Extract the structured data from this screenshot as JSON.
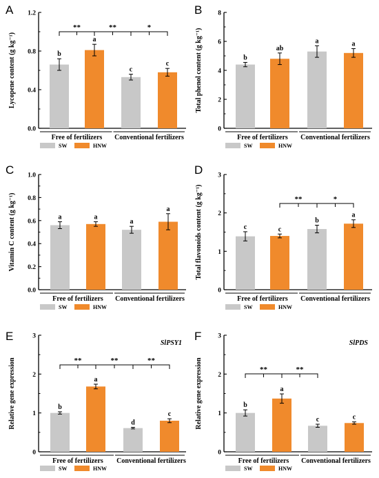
{
  "figure": {
    "colors": {
      "SW": "#c8c8c8",
      "HNW": "#f08a2c",
      "axis": "#000000"
    },
    "legend": [
      "SW",
      "HNW"
    ],
    "groups": [
      "Free of fertilizers",
      "Conventional fertilizers"
    ]
  },
  "chart_data": [
    {
      "panel": "A",
      "type": "bar",
      "ylabel": "Lycopene content (g kg⁻¹)",
      "ylim": [
        0,
        1.2
      ],
      "yticks": [
        "0.0",
        "0.4",
        "0.8",
        "1.2"
      ],
      "values": [
        0.66,
        0.81,
        0.53,
        0.58
      ],
      "errors": [
        0.06,
        0.06,
        0.03,
        0.04
      ],
      "letters": [
        "b",
        "a",
        "c",
        "c"
      ],
      "sig": [
        {
          "from": 0,
          "to": 1,
          "label": "**"
        },
        {
          "from": 1,
          "to": 2,
          "label": "**"
        },
        {
          "from": 2,
          "to": 3,
          "label": "*"
        }
      ],
      "gene": ""
    },
    {
      "panel": "B",
      "type": "bar",
      "ylabel": "Total phenol content (g kg⁻¹)",
      "ylim": [
        0,
        8
      ],
      "yticks": [
        "0",
        "2",
        "4",
        "6",
        "8"
      ],
      "values": [
        4.4,
        4.8,
        5.3,
        5.2
      ],
      "errors": [
        0.15,
        0.4,
        0.4,
        0.3
      ],
      "letters": [
        "b",
        "ab",
        "a",
        "a"
      ],
      "sig": [],
      "gene": ""
    },
    {
      "panel": "C",
      "type": "bar",
      "ylabel": "Vitamin C content (g kg⁻¹)",
      "ylim": [
        0,
        1.0
      ],
      "yticks": [
        "0.0",
        "0.2",
        "0.4",
        "0.6",
        "0.8",
        "1.0"
      ],
      "values": [
        0.56,
        0.57,
        0.52,
        0.59
      ],
      "errors": [
        0.03,
        0.02,
        0.03,
        0.07
      ],
      "letters": [
        "a",
        "a",
        "a",
        "a"
      ],
      "sig": [],
      "gene": ""
    },
    {
      "panel": "D",
      "type": "bar",
      "ylabel": "Total flavonoids content (g kg⁻¹)",
      "ylim": [
        0,
        3
      ],
      "yticks": [
        "0",
        "1",
        "2",
        "3"
      ],
      "values": [
        1.39,
        1.4,
        1.58,
        1.72
      ],
      "errors": [
        0.12,
        0.05,
        0.1,
        0.1
      ],
      "letters": [
        "c",
        "c",
        "b",
        "a"
      ],
      "sig": [
        {
          "from": 1,
          "to": 2,
          "label": "**"
        },
        {
          "from": 2,
          "to": 3,
          "label": "*"
        }
      ],
      "gene": ""
    },
    {
      "panel": "E",
      "type": "bar",
      "ylabel": "Relative gene expression",
      "ylim": [
        0,
        3
      ],
      "yticks": [
        "0",
        "1",
        "2",
        "3"
      ],
      "values": [
        1.0,
        1.68,
        0.61,
        0.8
      ],
      "errors": [
        0.03,
        0.06,
        0.02,
        0.05
      ],
      "letters": [
        "b",
        "a",
        "d",
        "c"
      ],
      "sig": [
        {
          "from": 0,
          "to": 1,
          "label": "**"
        },
        {
          "from": 1,
          "to": 2,
          "label": "**"
        },
        {
          "from": 2,
          "to": 3,
          "label": "**"
        }
      ],
      "gene": "SlPSY1"
    },
    {
      "panel": "F",
      "type": "bar",
      "ylabel": "Relative gene expression",
      "ylim": [
        0,
        3
      ],
      "yticks": [
        "0",
        "1",
        "2",
        "3"
      ],
      "values": [
        1.0,
        1.37,
        0.67,
        0.74
      ],
      "errors": [
        0.08,
        0.12,
        0.04,
        0.03
      ],
      "letters": [
        "b",
        "a",
        "c",
        "c"
      ],
      "sig": [
        {
          "from": 0,
          "to": 1,
          "label": "**"
        },
        {
          "from": 1,
          "to": 2,
          "label": "**"
        }
      ],
      "gene": "SlPDS"
    }
  ]
}
